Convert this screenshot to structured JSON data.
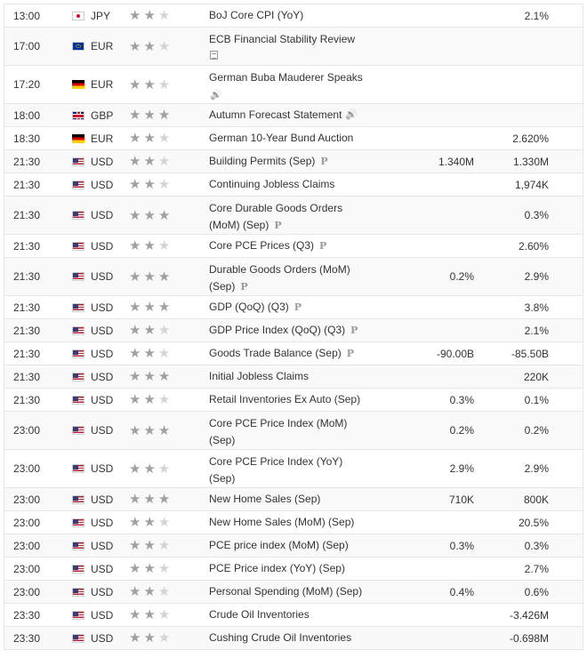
{
  "events": [
    {
      "time": "13:00",
      "flag": "jp",
      "currency": "JPY",
      "stars": 2,
      "event": "BoJ Core CPI (YoY)",
      "icon": "",
      "line2": "",
      "forecast": "",
      "actual": "2.1%"
    },
    {
      "time": "17:00",
      "flag": "eu",
      "currency": "EUR",
      "stars": 2,
      "event": "ECB Financial Stability Review",
      "icon": "document-icon",
      "line2": "",
      "forecast": "",
      "actual": ""
    },
    {
      "time": "17:20",
      "flag": "de",
      "currency": "EUR",
      "stars": 2,
      "event": "German Buba Mauderer Speaks",
      "icon": "speaker-icon",
      "line2": "",
      "forecast": "",
      "actual": ""
    },
    {
      "time": "18:00",
      "flag": "gb",
      "currency": "GBP",
      "stars": 3,
      "event": "Autumn Forecast Statement",
      "icon": "speaker-icon",
      "line2": "",
      "forecast": "",
      "actual": ""
    },
    {
      "time": "18:30",
      "flag": "de",
      "currency": "EUR",
      "stars": 2,
      "event": "German 10-Year Bund Auction",
      "icon": "",
      "line2": "",
      "forecast": "",
      "actual": "2.620%"
    },
    {
      "time": "21:30",
      "flag": "us",
      "currency": "USD",
      "stars": 2,
      "event": "Building Permits (Sep)",
      "icon": "preliminary-icon",
      "line2": "",
      "forecast": "1.340M",
      "actual": "1.330M"
    },
    {
      "time": "21:30",
      "flag": "us",
      "currency": "USD",
      "stars": 2,
      "event": "Continuing Jobless Claims",
      "icon": "",
      "line2": "",
      "forecast": "",
      "actual": "1,974K"
    },
    {
      "time": "21:30",
      "flag": "us",
      "currency": "USD",
      "stars": 3,
      "event": "Core Durable Goods Orders",
      "icon": "preliminary-icon",
      "line2": "(MoM) (Sep)",
      "forecast": "",
      "actual": "0.3%"
    },
    {
      "time": "21:30",
      "flag": "us",
      "currency": "USD",
      "stars": 2,
      "event": "Core PCE Prices (Q3)",
      "icon": "preliminary-icon",
      "line2": "",
      "forecast": "",
      "actual": "2.60%"
    },
    {
      "time": "21:30",
      "flag": "us",
      "currency": "USD",
      "stars": 3,
      "event": "Durable Goods Orders (MoM)",
      "icon": "preliminary-icon",
      "line2": "(Sep)",
      "forecast": "0.2%",
      "actual": "2.9%"
    },
    {
      "time": "21:30",
      "flag": "us",
      "currency": "USD",
      "stars": 3,
      "event": "GDP (QoQ) (Q3)",
      "icon": "preliminary-icon",
      "line2": "",
      "forecast": "",
      "actual": "3.8%"
    },
    {
      "time": "21:30",
      "flag": "us",
      "currency": "USD",
      "stars": 2,
      "event": "GDP Price Index (QoQ) (Q3)",
      "icon": "preliminary-icon",
      "line2": "",
      "forecast": "",
      "actual": "2.1%"
    },
    {
      "time": "21:30",
      "flag": "us",
      "currency": "USD",
      "stars": 2,
      "event": "Goods Trade Balance (Sep)",
      "icon": "preliminary-icon",
      "line2": "",
      "forecast": "-90.00B",
      "actual": "-85.50B"
    },
    {
      "time": "21:30",
      "flag": "us",
      "currency": "USD",
      "stars": 3,
      "event": "Initial Jobless Claims",
      "icon": "",
      "line2": "",
      "forecast": "",
      "actual": "220K"
    },
    {
      "time": "21:30",
      "flag": "us",
      "currency": "USD",
      "stars": 2,
      "event": "Retail Inventories Ex Auto (Sep)",
      "icon": "",
      "line2": "",
      "forecast": "0.3%",
      "actual": "0.1%"
    },
    {
      "time": "23:00",
      "flag": "us",
      "currency": "USD",
      "stars": 3,
      "event": "Core PCE Price Index (MoM)",
      "icon": "",
      "line2": "(Sep)",
      "forecast": "0.2%",
      "actual": "0.2%"
    },
    {
      "time": "23:00",
      "flag": "us",
      "currency": "USD",
      "stars": 2,
      "event": "Core PCE Price Index (YoY)",
      "icon": "",
      "line2": "(Sep)",
      "forecast": "2.9%",
      "actual": "2.9%"
    },
    {
      "time": "23:00",
      "flag": "us",
      "currency": "USD",
      "stars": 3,
      "event": "New Home Sales (Sep)",
      "icon": "",
      "line2": "",
      "forecast": "710K",
      "actual": "800K"
    },
    {
      "time": "23:00",
      "flag": "us",
      "currency": "USD",
      "stars": 2,
      "event": "New Home Sales (MoM) (Sep)",
      "icon": "",
      "line2": "",
      "forecast": "",
      "actual": "20.5%"
    },
    {
      "time": "23:00",
      "flag": "us",
      "currency": "USD",
      "stars": 2,
      "event": "PCE price index (MoM) (Sep)",
      "icon": "",
      "line2": "",
      "forecast": "0.3%",
      "actual": "0.3%"
    },
    {
      "time": "23:00",
      "flag": "us",
      "currency": "USD",
      "stars": 2,
      "event": "PCE Price index (YoY) (Sep)",
      "icon": "",
      "line2": "",
      "forecast": "",
      "actual": "2.7%"
    },
    {
      "time": "23:00",
      "flag": "us",
      "currency": "USD",
      "stars": 2,
      "event": "Personal Spending (MoM) (Sep)",
      "icon": "",
      "line2": "",
      "forecast": "0.4%",
      "actual": "0.6%"
    },
    {
      "time": "23:30",
      "flag": "us",
      "currency": "USD",
      "stars": 2,
      "event": "Crude Oil Inventories",
      "icon": "",
      "line2": "",
      "forecast": "",
      "actual": "-3.426M"
    },
    {
      "time": "23:30",
      "flag": "us",
      "currency": "USD",
      "stars": 2,
      "event": "Cushing Crude Oil Inventories",
      "icon": "",
      "line2": "",
      "forecast": "",
      "actual": "-0.698M"
    }
  ]
}
